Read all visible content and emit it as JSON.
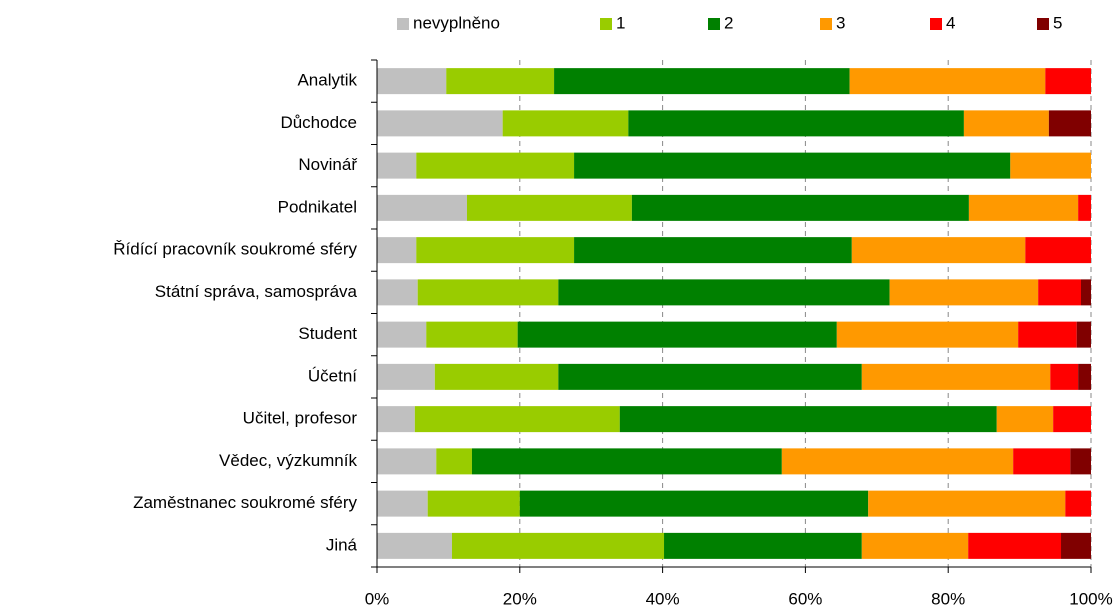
{
  "chart_data": {
    "type": "stacked_barh",
    "categories": [
      "Analytik",
      "Důchodce",
      "Novinář",
      "Podnikatel",
      "Řídící pracovník soukromé sféry",
      "Státní správa, samospráva",
      "Student",
      "Účetní",
      "Učitel, profesor",
      "Vědec, výzkumník",
      "Zaměstnanec soukromé sféry",
      "Jiná"
    ],
    "series": [
      {
        "name": "nevyplněno",
        "color": "#c0c0c0",
        "values": [
          9.7,
          17.6,
          5.5,
          12.6,
          5.5,
          5.7,
          6.9,
          8.1,
          5.3,
          8.3,
          7.1,
          10.5
        ]
      },
      {
        "name": "1",
        "color": "#99cc00",
        "values": [
          15.1,
          17.6,
          22.1,
          23.1,
          22.1,
          19.7,
          12.8,
          17.3,
          28.7,
          5.0,
          12.9,
          29.7
        ]
      },
      {
        "name": "2",
        "color": "#008000",
        "values": [
          41.4,
          47.0,
          61.1,
          47.2,
          38.9,
          46.4,
          44.7,
          42.5,
          52.8,
          43.4,
          48.8,
          27.7
        ]
      },
      {
        "name": "3",
        "color": "#ff9900",
        "values": [
          27.4,
          11.9,
          11.3,
          15.3,
          24.3,
          20.8,
          25.4,
          26.4,
          7.9,
          32.4,
          27.6,
          14.9
        ]
      },
      {
        "name": "4",
        "color": "#ff0000",
        "values": [
          6.4,
          0,
          0,
          1.8,
          9.2,
          6.0,
          8.2,
          3.9,
          5.3,
          8.0,
          3.6,
          13.0
        ]
      },
      {
        "name": "5",
        "color": "#800000",
        "values": [
          0,
          5.9,
          0,
          0,
          0,
          1.4,
          2.0,
          1.8,
          0,
          2.9,
          0,
          4.2
        ]
      }
    ],
    "xlim": [
      0,
      100
    ],
    "xticks": [
      {
        "value": 0,
        "label": "0%"
      },
      {
        "value": 20,
        "label": "20%"
      },
      {
        "value": 40,
        "label": "40%"
      },
      {
        "value": 60,
        "label": "60%"
      },
      {
        "value": 80,
        "label": "80%"
      },
      {
        "value": 100,
        "label": "100%"
      }
    ],
    "grid": true,
    "legend": "top"
  }
}
